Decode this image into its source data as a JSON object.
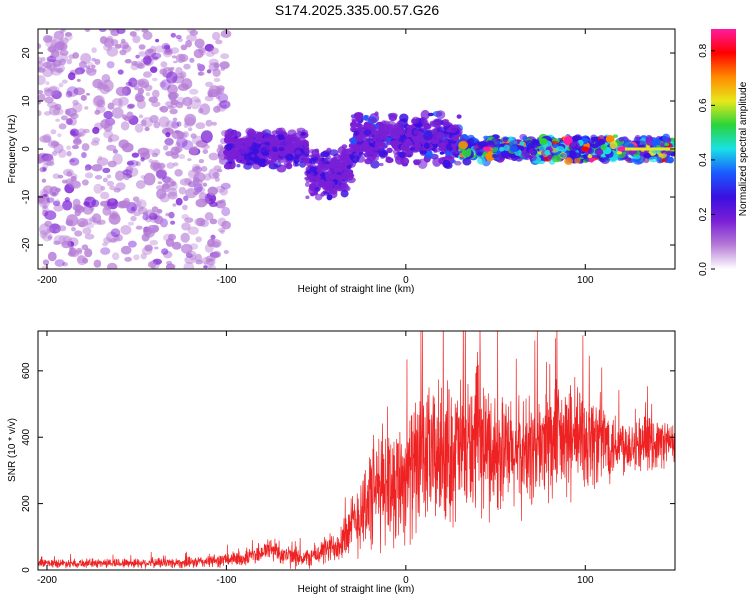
{
  "title": "S174.2025.335.00.57.G26",
  "colors": {
    "snr_line": "#ee2222",
    "background": "#ffffff",
    "frame": "#000000",
    "colormap": [
      "#ffffff",
      "#b57bd6",
      "#7a1fd6",
      "#3a10e0",
      "#1a5aff",
      "#19e0e6",
      "#2ad43a",
      "#e8e81a",
      "#ff8a00",
      "#ff0000",
      "#ff1aa0"
    ]
  },
  "chart_data": [
    {
      "type": "heatmap",
      "name": "spectrogram",
      "xlabel": "Height of straight line (km)",
      "ylabel": "Frequency (Hz)",
      "xlim": [
        -205,
        150
      ],
      "ylim": [
        -25,
        25
      ],
      "xticks": [
        -200,
        -100,
        0,
        100
      ],
      "xtick_labels": [
        "-200",
        "-100",
        "0",
        "100"
      ],
      "yticks": [
        20,
        10,
        0,
        -10,
        -20
      ],
      "ytick_labels": [
        "20",
        "10",
        "0",
        "-10",
        "-20"
      ],
      "colorbar": {
        "label": "Normalized spectral amplitude",
        "range": [
          0.0,
          0.88
        ],
        "ticks": [
          0.0,
          0.2,
          0.4,
          0.6,
          0.8
        ],
        "tick_labels": [
          "0.0",
          "0.2",
          "0.4",
          "0.6",
          "0.8"
        ]
      },
      "description_regions": [
        {
          "x_range": [
            -205,
            -100
          ],
          "freq_range": [
            -25,
            25
          ],
          "amplitude": [
            0.05,
            0.2
          ],
          "kind": "noise"
        },
        {
          "x_range": [
            -100,
            -55
          ],
          "freq_center": 0,
          "freq_halfwidth": 3,
          "amplitude": [
            0.15,
            0.3
          ]
        },
        {
          "x_range": [
            -55,
            -30
          ],
          "freq_center": -5,
          "freq_halfwidth": 4,
          "amplitude": [
            0.15,
            0.3
          ]
        },
        {
          "x_range": [
            -30,
            30
          ],
          "freq_center": 2,
          "freq_halfwidth": 4,
          "amplitude": [
            0.15,
            0.35
          ]
        },
        {
          "x_range": [
            30,
            150
          ],
          "freq_center": 0,
          "freq_halfwidth": 2,
          "amplitude": [
            0.2,
            0.85
          ]
        }
      ]
    },
    {
      "type": "line",
      "name": "snr",
      "xlabel": "Height of straight line (km)",
      "ylabel": "SNR (10 * v/v)",
      "xlim": [
        -205,
        150
      ],
      "ylim": [
        0,
        720
      ],
      "xticks": [
        -200,
        -100,
        0,
        100
      ],
      "xtick_labels": [
        "-200",
        "-100",
        "0",
        "100"
      ],
      "yticks": [
        0,
        200,
        400,
        600
      ],
      "ytick_labels": [
        "0",
        "200",
        "400",
        "600"
      ],
      "envelope": {
        "x": [
          -205,
          -120,
          -90,
          -75,
          -65,
          -55,
          -40,
          -30,
          -25,
          -20,
          -15,
          -10,
          -5,
          0,
          10,
          20,
          30,
          40,
          60,
          80,
          100,
          120,
          150
        ],
        "mean": [
          20,
          22,
          35,
          65,
          40,
          35,
          70,
          130,
          180,
          215,
          245,
          260,
          270,
          285,
          330,
          350,
          360,
          380,
          340,
          380,
          400,
          380,
          385
        ],
        "spread": [
          15,
          20,
          30,
          45,
          40,
          35,
          60,
          110,
          160,
          200,
          210,
          230,
          220,
          230,
          250,
          260,
          260,
          250,
          200,
          220,
          200,
          110,
          80
        ]
      }
    }
  ]
}
